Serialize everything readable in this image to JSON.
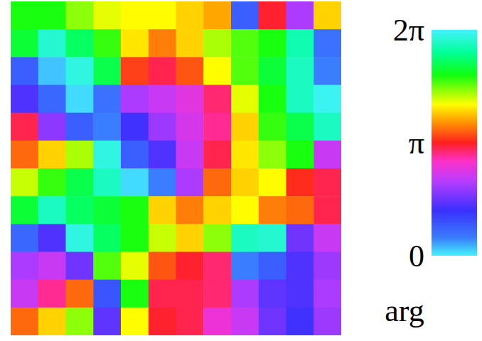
{
  "chart_data": {
    "type": "heatmap",
    "tick_labels": false,
    "cells": [
      [
        5.0,
        5.0,
        4.6,
        4.3,
        4.2,
        4.2,
        4.0,
        3.8,
        0.8,
        3.1,
        2.0,
        4.0
      ],
      [
        5.2,
        6.0,
        5.4,
        4.9,
        4.1,
        3.6,
        4.0,
        4.5,
        4.8,
        5.0,
        5.8,
        0.6
      ],
      [
        0.8,
        0.2,
        6.1,
        5.3,
        3.3,
        3.0,
        3.4,
        4.2,
        4.8,
        5.2,
        5.9,
        0.5
      ],
      [
        1.4,
        0.7,
        0.1,
        0.6,
        2.0,
        2.2,
        2.4,
        2.9,
        4.3,
        5.0,
        5.9,
        6.2
      ],
      [
        3.0,
        1.8,
        0.8,
        0.5,
        1.3,
        1.9,
        2.3,
        2.8,
        4.0,
        4.9,
        5.3,
        5.9
      ],
      [
        3.5,
        4.0,
        4.5,
        6.1,
        0.8,
        1.4,
        2.2,
        3.0,
        4.1,
        4.6,
        5.0,
        2.2
      ],
      [
        4.4,
        4.9,
        5.3,
        5.9,
        0.1,
        0.5,
        2.0,
        3.5,
        4.0,
        4.2,
        3.2,
        3.0
      ],
      [
        5.2,
        5.9,
        5.4,
        5.2,
        5.0,
        4.0,
        3.6,
        4.0,
        4.2,
        3.6,
        3.5,
        3.0
      ],
      [
        0.7,
        1.4,
        6.1,
        5.4,
        5.0,
        4.4,
        4.0,
        4.6,
        5.9,
        6.0,
        1.6,
        2.2
      ],
      [
        2.0,
        2.2,
        1.6,
        4.8,
        4.3,
        3.4,
        3.1,
        2.9,
        0.5,
        0.8,
        1.4,
        1.9
      ],
      [
        2.2,
        2.8,
        3.5,
        0.9,
        5.0,
        3.0,
        3.0,
        2.9,
        2.0,
        1.5,
        1.4,
        2.0
      ],
      [
        3.5,
        4.0,
        4.6,
        1.5,
        4.2,
        3.1,
        3.0,
        2.5,
        2.2,
        1.6,
        1.3,
        1.9
      ]
    ],
    "colorbar": {
      "label": "arg",
      "range": [
        0,
        6.28319
      ],
      "ticks": [
        0,
        {
          "value": 3.14159,
          "label": "π"
        },
        {
          "value": 6.28319,
          "label": "2π"
        }
      ]
    }
  }
}
